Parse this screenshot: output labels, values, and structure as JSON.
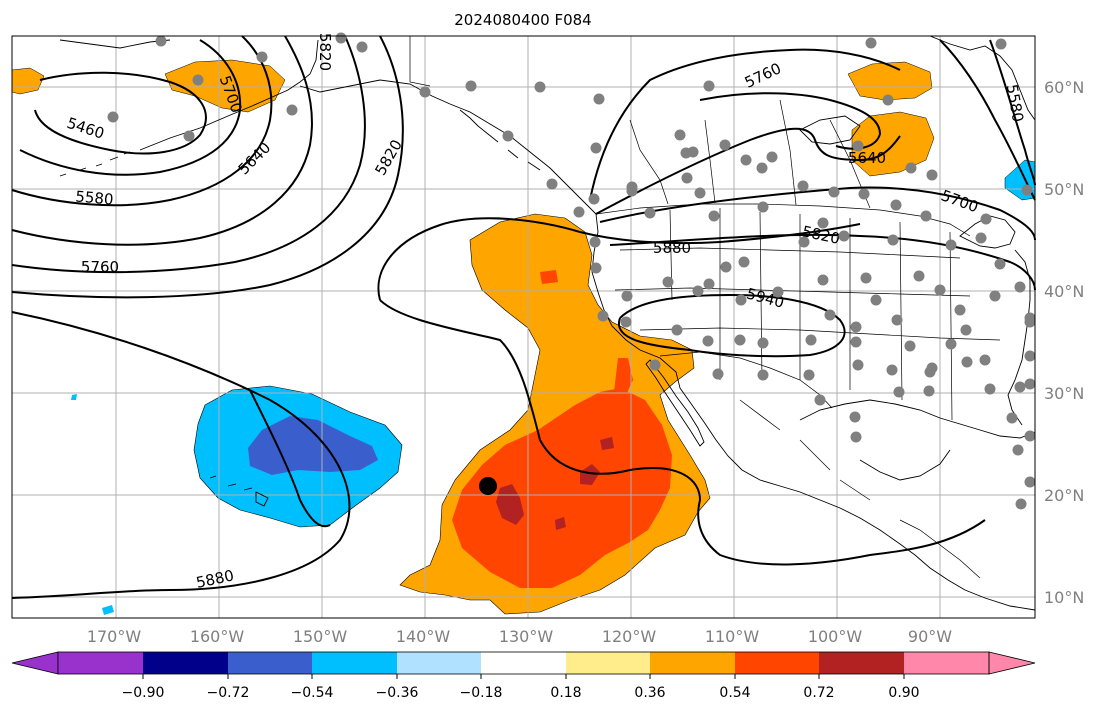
{
  "title": "2024080400 F084",
  "lat_labels": [
    "60°N",
    "50°N",
    "40°N",
    "30°N",
    "20°N",
    "10°N"
  ],
  "lon_labels": [
    "170°W",
    "160°W",
    "150°W",
    "140°W",
    "130°W",
    "120°W",
    "110°W",
    "100°W",
    "90°W"
  ],
  "contour_labels": [
    "5460",
    "5580",
    "5760",
    "5640",
    "5700",
    "5820",
    "5820",
    "5880",
    "5940",
    "5760",
    "5640",
    "5700",
    "5820",
    "5580",
    "5880"
  ],
  "colorbar": {
    "ticks": [
      "−0.90",
      "−0.72",
      "−0.54",
      "−0.36",
      "−0.18",
      "0.18",
      "0.36",
      "0.54",
      "0.72",
      "0.90"
    ],
    "colors": [
      "#9932cc",
      "#00008b",
      "#3a5fcd",
      "#00bfff",
      "#b0e2ff",
      "#ffffff",
      "#ffec8b",
      "#ffa500",
      "#ff4500",
      "#b22222",
      "#ff88aa"
    ]
  },
  "colors": {
    "positive_1": "#ffa500",
    "positive_2": "#ff4500",
    "positive_3": "#b22222",
    "negative_1": "#00bfff",
    "negative_2": "#3a5fcd",
    "station_dots": "#808080",
    "marker": "#000000"
  }
}
